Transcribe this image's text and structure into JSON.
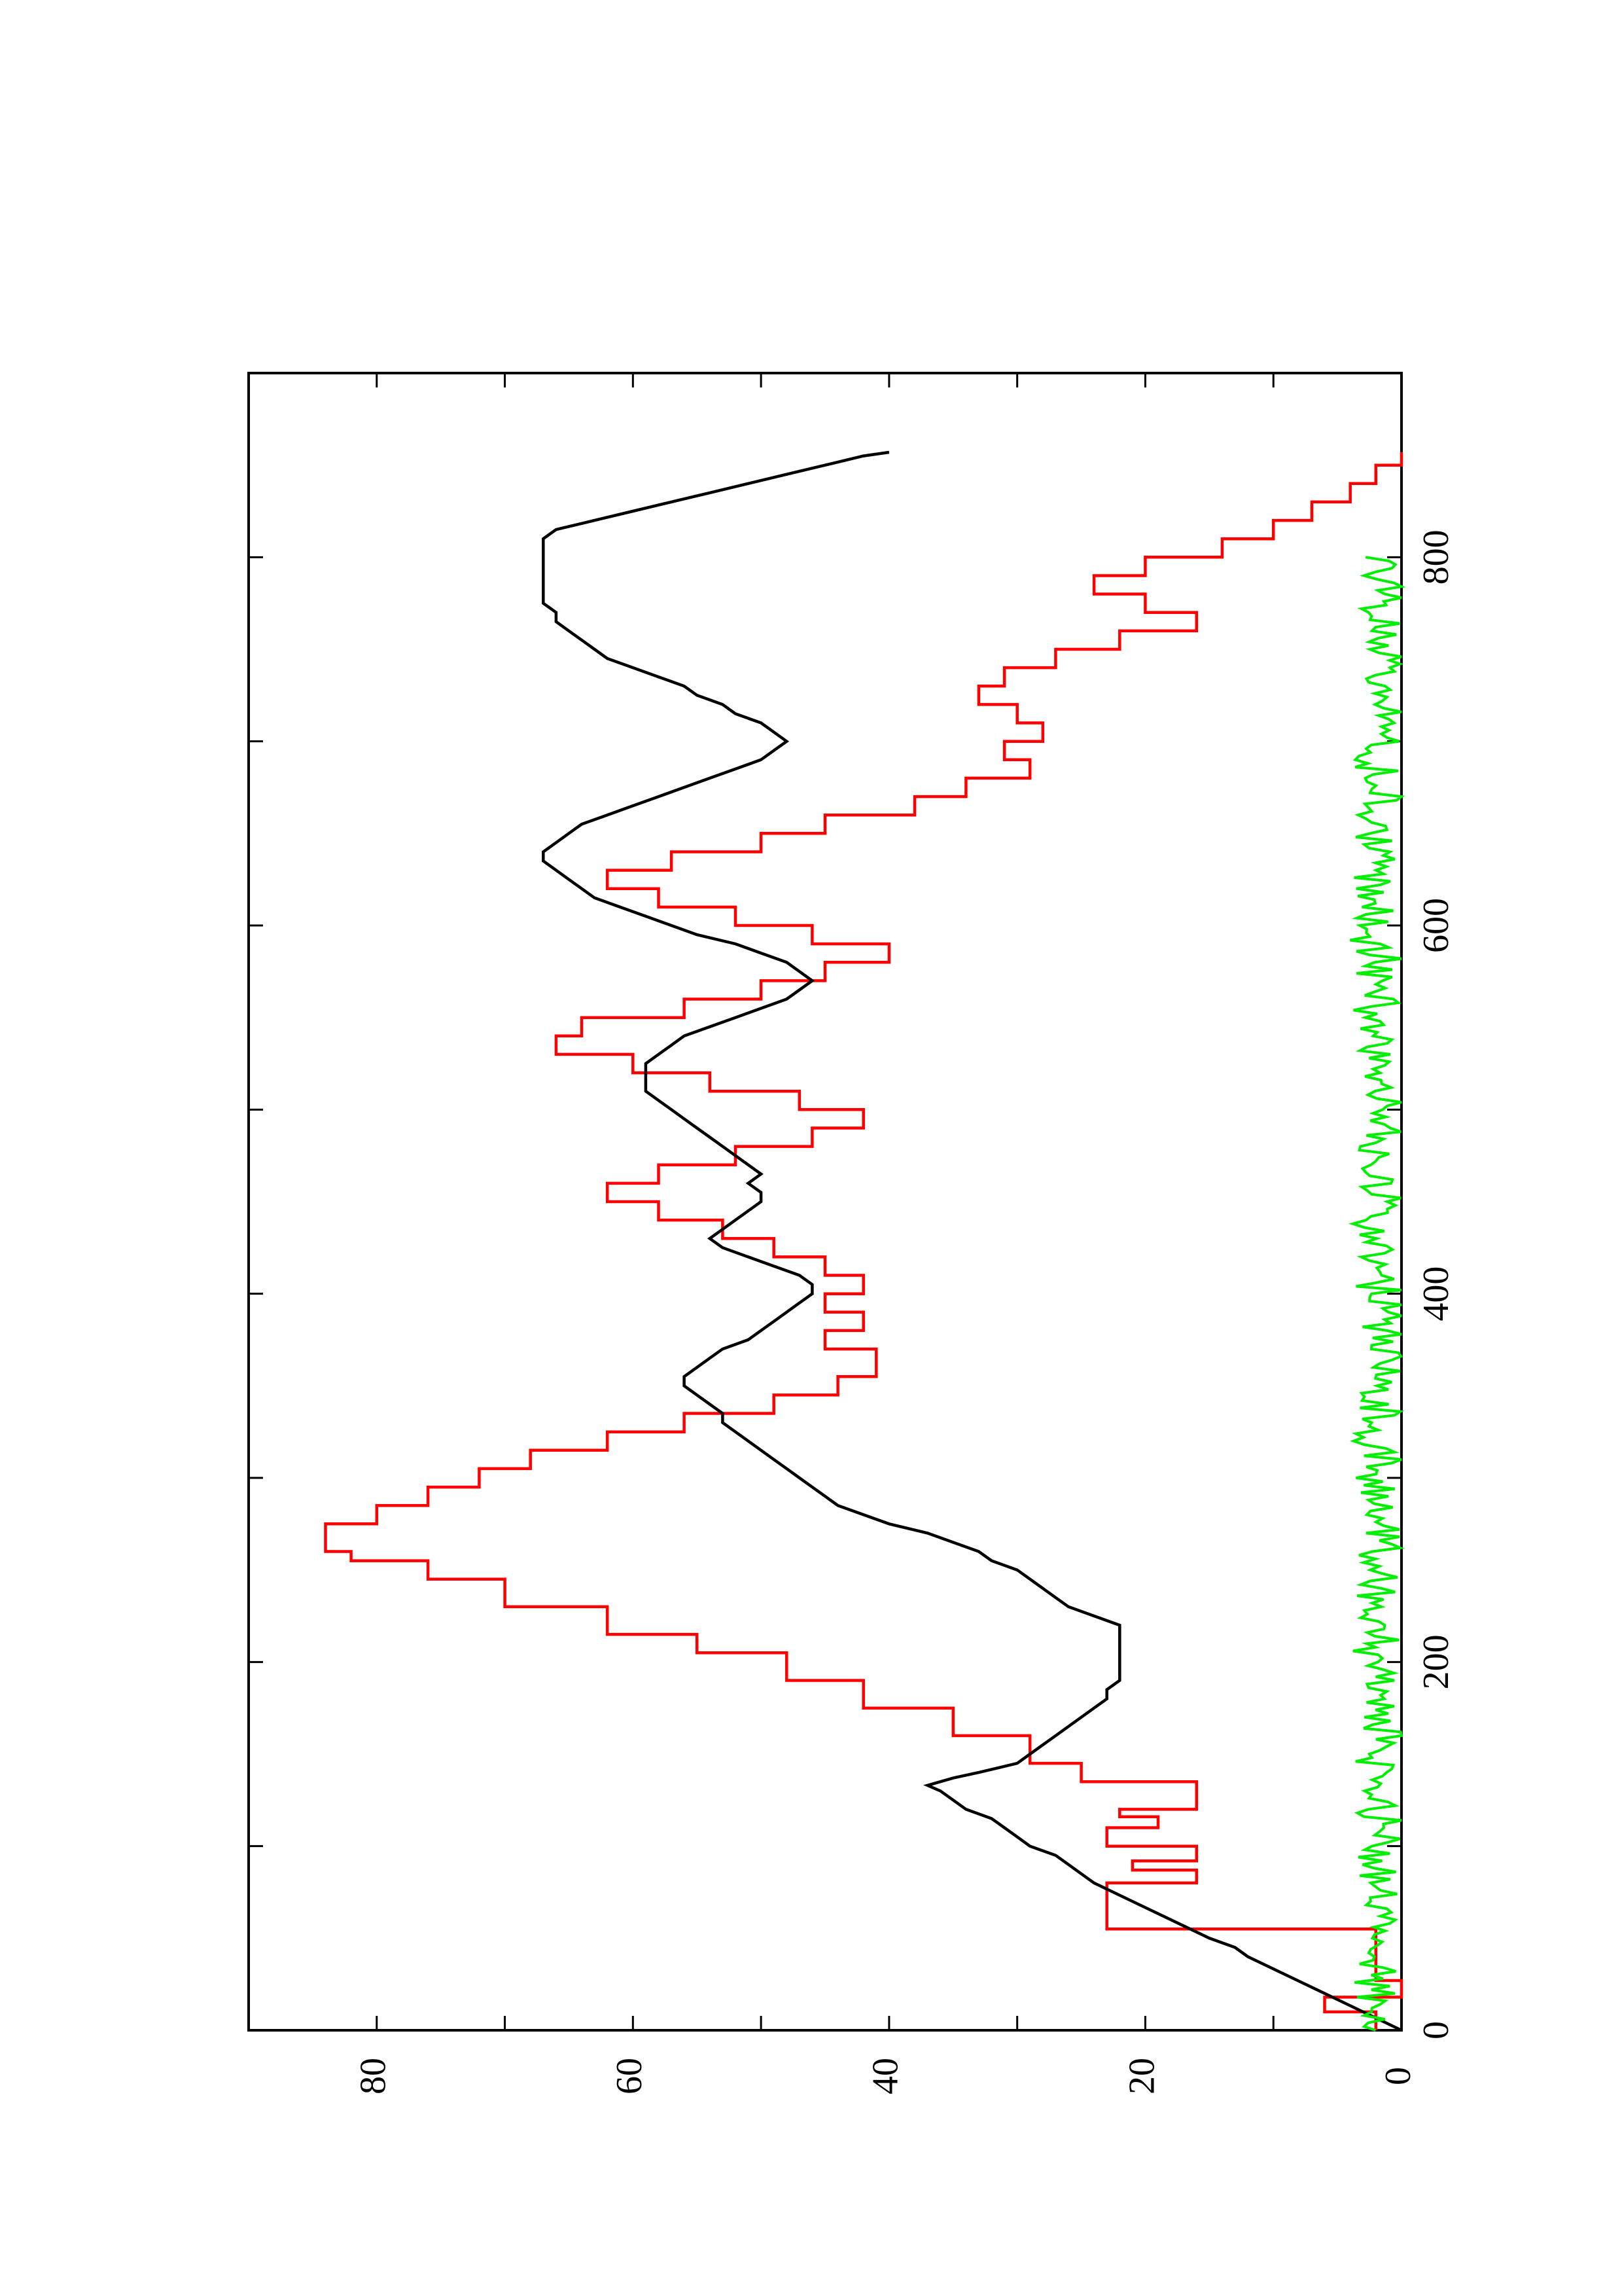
{
  "chart_data": {
    "type": "line",
    "title": "",
    "xlabel": "",
    "ylabel": "",
    "orientation": "rotated-90-ccw",
    "xlim": [
      0,
      900
    ],
    "ylim": [
      0,
      90
    ],
    "x_ticks": [
      0,
      200,
      400,
      600,
      800
    ],
    "y_ticks": [
      0,
      20,
      40,
      60,
      80
    ],
    "x_minor_ticks": [
      100,
      300,
      500,
      700
    ],
    "y_minor_ticks": [
      10,
      30,
      50,
      70
    ],
    "grid": false,
    "legend": "none",
    "series": [
      {
        "color": "#ff0000",
        "style": "step",
        "points": [
          [
            0,
            2
          ],
          [
            10,
            2
          ],
          [
            10,
            6
          ],
          [
            18,
            6
          ],
          [
            18,
            0
          ],
          [
            27,
            0
          ],
          [
            27,
            2
          ],
          [
            55,
            2
          ],
          [
            55,
            23
          ],
          [
            80,
            23
          ],
          [
            80,
            16
          ],
          [
            87,
            16
          ],
          [
            87,
            21
          ],
          [
            92,
            21
          ],
          [
            92,
            16
          ],
          [
            100,
            16
          ],
          [
            100,
            23
          ],
          [
            110,
            23
          ],
          [
            110,
            19
          ],
          [
            116,
            19
          ],
          [
            116,
            22
          ],
          [
            120,
            22
          ],
          [
            120,
            16
          ],
          [
            135,
            16
          ],
          [
            135,
            25
          ],
          [
            145,
            25
          ],
          [
            145,
            29
          ],
          [
            160,
            29
          ],
          [
            160,
            35
          ],
          [
            175,
            35
          ],
          [
            175,
            42
          ],
          [
            190,
            42
          ],
          [
            190,
            48
          ],
          [
            205,
            48
          ],
          [
            205,
            55
          ],
          [
            215,
            55
          ],
          [
            215,
            62
          ],
          [
            230,
            62
          ],
          [
            230,
            70
          ],
          [
            245,
            70
          ],
          [
            245,
            76
          ],
          [
            255,
            76
          ],
          [
            255,
            82
          ],
          [
            260,
            82
          ],
          [
            260,
            84
          ],
          [
            275,
            84
          ],
          [
            275,
            80
          ],
          [
            285,
            80
          ],
          [
            285,
            76
          ],
          [
            295,
            76
          ],
          [
            295,
            72
          ],
          [
            305,
            72
          ],
          [
            305,
            68
          ],
          [
            315,
            68
          ],
          [
            315,
            62
          ],
          [
            325,
            62
          ],
          [
            325,
            56
          ],
          [
            335,
            56
          ],
          [
            335,
            49
          ],
          [
            345,
            49
          ],
          [
            345,
            44
          ],
          [
            355,
            44
          ],
          [
            355,
            41
          ],
          [
            370,
            41
          ],
          [
            370,
            45
          ],
          [
            380,
            45
          ],
          [
            380,
            42
          ],
          [
            390,
            42
          ],
          [
            390,
            45
          ],
          [
            400,
            45
          ],
          [
            400,
            42
          ],
          [
            410,
            42
          ],
          [
            410,
            45
          ],
          [
            420,
            45
          ],
          [
            420,
            49
          ],
          [
            430,
            49
          ],
          [
            430,
            53
          ],
          [
            440,
            53
          ],
          [
            440,
            58
          ],
          [
            450,
            58
          ],
          [
            450,
            62
          ],
          [
            460,
            62
          ],
          [
            460,
            58
          ],
          [
            470,
            58
          ],
          [
            470,
            52
          ],
          [
            480,
            52
          ],
          [
            480,
            46
          ],
          [
            490,
            46
          ],
          [
            490,
            42
          ],
          [
            500,
            42
          ],
          [
            500,
            47
          ],
          [
            510,
            47
          ],
          [
            510,
            54
          ],
          [
            520,
            54
          ],
          [
            520,
            60
          ],
          [
            530,
            60
          ],
          [
            530,
            66
          ],
          [
            540,
            66
          ],
          [
            540,
            64
          ],
          [
            550,
            64
          ],
          [
            550,
            56
          ],
          [
            560,
            56
          ],
          [
            560,
            50
          ],
          [
            570,
            50
          ],
          [
            570,
            45
          ],
          [
            580,
            45
          ],
          [
            580,
            40
          ],
          [
            590,
            40
          ],
          [
            590,
            46
          ],
          [
            600,
            46
          ],
          [
            600,
            52
          ],
          [
            610,
            52
          ],
          [
            610,
            58
          ],
          [
            620,
            58
          ],
          [
            620,
            62
          ],
          [
            630,
            62
          ],
          [
            630,
            57
          ],
          [
            640,
            57
          ],
          [
            640,
            50
          ],
          [
            650,
            50
          ],
          [
            650,
            45
          ],
          [
            660,
            45
          ],
          [
            660,
            38
          ],
          [
            670,
            38
          ],
          [
            670,
            34
          ],
          [
            680,
            34
          ],
          [
            680,
            29
          ],
          [
            690,
            29
          ],
          [
            690,
            31
          ],
          [
            700,
            31
          ],
          [
            700,
            28
          ],
          [
            710,
            28
          ],
          [
            710,
            30
          ],
          [
            720,
            30
          ],
          [
            720,
            33
          ],
          [
            730,
            33
          ],
          [
            730,
            31
          ],
          [
            740,
            31
          ],
          [
            740,
            27
          ],
          [
            750,
            27
          ],
          [
            750,
            22
          ],
          [
            760,
            22
          ],
          [
            760,
            16
          ],
          [
            770,
            16
          ],
          [
            770,
            20
          ],
          [
            780,
            20
          ],
          [
            780,
            24
          ],
          [
            790,
            24
          ],
          [
            790,
            20
          ],
          [
            800,
            20
          ],
          [
            800,
            14
          ],
          [
            810,
            14
          ],
          [
            810,
            10
          ],
          [
            820,
            10
          ],
          [
            820,
            7
          ],
          [
            830,
            7
          ],
          [
            830,
            4
          ],
          [
            840,
            4
          ],
          [
            840,
            2
          ],
          [
            850,
            2
          ],
          [
            850,
            0
          ],
          [
            857,
            0
          ]
        ]
      },
      {
        "color": "#000000",
        "style": "line",
        "points": [
          [
            0,
            0
          ],
          [
            10,
            3
          ],
          [
            20,
            6
          ],
          [
            30,
            9
          ],
          [
            40,
            12
          ],
          [
            45,
            13
          ],
          [
            50,
            15
          ],
          [
            60,
            18
          ],
          [
            70,
            21
          ],
          [
            80,
            24
          ],
          [
            85,
            25
          ],
          [
            90,
            26
          ],
          [
            95,
            27
          ],
          [
            100,
            29
          ],
          [
            105,
            30
          ],
          [
            110,
            31
          ],
          [
            115,
            32
          ],
          [
            120,
            34
          ],
          [
            125,
            35
          ],
          [
            130,
            36
          ],
          [
            133,
            37
          ],
          [
            137,
            35
          ],
          [
            140,
            33
          ],
          [
            145,
            30
          ],
          [
            150,
            29
          ],
          [
            155,
            28
          ],
          [
            160,
            27
          ],
          [
            165,
            26
          ],
          [
            170,
            25
          ],
          [
            175,
            24
          ],
          [
            180,
            23
          ],
          [
            185,
            23
          ],
          [
            190,
            22
          ],
          [
            195,
            22
          ],
          [
            200,
            22
          ],
          [
            210,
            22
          ],
          [
            215,
            22
          ],
          [
            220,
            22
          ],
          [
            225,
            24
          ],
          [
            230,
            26
          ],
          [
            235,
            27
          ],
          [
            240,
            28
          ],
          [
            250,
            30
          ],
          [
            255,
            32
          ],
          [
            260,
            33
          ],
          [
            265,
            35
          ],
          [
            270,
            37
          ],
          [
            275,
            40
          ],
          [
            280,
            42
          ],
          [
            285,
            44
          ],
          [
            290,
            45
          ],
          [
            295,
            46
          ],
          [
            300,
            47
          ],
          [
            305,
            48
          ],
          [
            310,
            49
          ],
          [
            315,
            50
          ],
          [
            320,
            51
          ],
          [
            325,
            52
          ],
          [
            330,
            53
          ],
          [
            335,
            53
          ],
          [
            340,
            54
          ],
          [
            345,
            55
          ],
          [
            350,
            56
          ],
          [
            355,
            56
          ],
          [
            360,
            55
          ],
          [
            365,
            54
          ],
          [
            370,
            53
          ],
          [
            375,
            51
          ],
          [
            380,
            50
          ],
          [
            385,
            49
          ],
          [
            390,
            48
          ],
          [
            395,
            47
          ],
          [
            400,
            46
          ],
          [
            405,
            46
          ],
          [
            410,
            47
          ],
          [
            415,
            49
          ],
          [
            420,
            51
          ],
          [
            425,
            53
          ],
          [
            430,
            54
          ],
          [
            435,
            53
          ],
          [
            440,
            52
          ],
          [
            445,
            51
          ],
          [
            450,
            50
          ],
          [
            455,
            50
          ],
          [
            460,
            51
          ],
          [
            465,
            50
          ],
          [
            470,
            51
          ],
          [
            475,
            52
          ],
          [
            480,
            53
          ],
          [
            485,
            54
          ],
          [
            490,
            55
          ],
          [
            495,
            56
          ],
          [
            500,
            57
          ],
          [
            505,
            58
          ],
          [
            510,
            59
          ],
          [
            515,
            59
          ],
          [
            520,
            59
          ],
          [
            525,
            59
          ],
          [
            530,
            58
          ],
          [
            535,
            57
          ],
          [
            540,
            56
          ],
          [
            545,
            54
          ],
          [
            550,
            52
          ],
          [
            555,
            50
          ],
          [
            560,
            48
          ],
          [
            565,
            47
          ],
          [
            570,
            46
          ],
          [
            575,
            47
          ],
          [
            580,
            48
          ],
          [
            585,
            50
          ],
          [
            590,
            52
          ],
          [
            595,
            55
          ],
          [
            600,
            57
          ],
          [
            605,
            59
          ],
          [
            610,
            61
          ],
          [
            615,
            63
          ],
          [
            620,
            64
          ],
          [
            625,
            65
          ],
          [
            630,
            66
          ],
          [
            635,
            67
          ],
          [
            640,
            67
          ],
          [
            645,
            66
          ],
          [
            650,
            65
          ],
          [
            655,
            64
          ],
          [
            660,
            62
          ],
          [
            665,
            60
          ],
          [
            670,
            58
          ],
          [
            675,
            56
          ],
          [
            680,
            54
          ],
          [
            685,
            52
          ],
          [
            690,
            50
          ],
          [
            695,
            49
          ],
          [
            700,
            48
          ],
          [
            705,
            49
          ],
          [
            710,
            50
          ],
          [
            715,
            52
          ],
          [
            720,
            53
          ],
          [
            725,
            55
          ],
          [
            730,
            56
          ],
          [
            735,
            58
          ],
          [
            740,
            60
          ],
          [
            745,
            62
          ],
          [
            750,
            63
          ],
          [
            755,
            64
          ],
          [
            760,
            65
          ],
          [
            765,
            66
          ],
          [
            770,
            66
          ],
          [
            775,
            67
          ],
          [
            780,
            67
          ],
          [
            785,
            67
          ],
          [
            790,
            67
          ],
          [
            795,
            67
          ],
          [
            800,
            67
          ],
          [
            805,
            67
          ],
          [
            810,
            67
          ],
          [
            815,
            66
          ],
          [
            820,
            63
          ],
          [
            825,
            60
          ],
          [
            830,
            57
          ],
          [
            835,
            54
          ],
          [
            840,
            51
          ],
          [
            845,
            48
          ],
          [
            850,
            45
          ],
          [
            855,
            42
          ],
          [
            857,
            40
          ]
        ]
      },
      {
        "color": "#00ee00",
        "style": "line",
        "points": "noise"
      }
    ]
  }
}
